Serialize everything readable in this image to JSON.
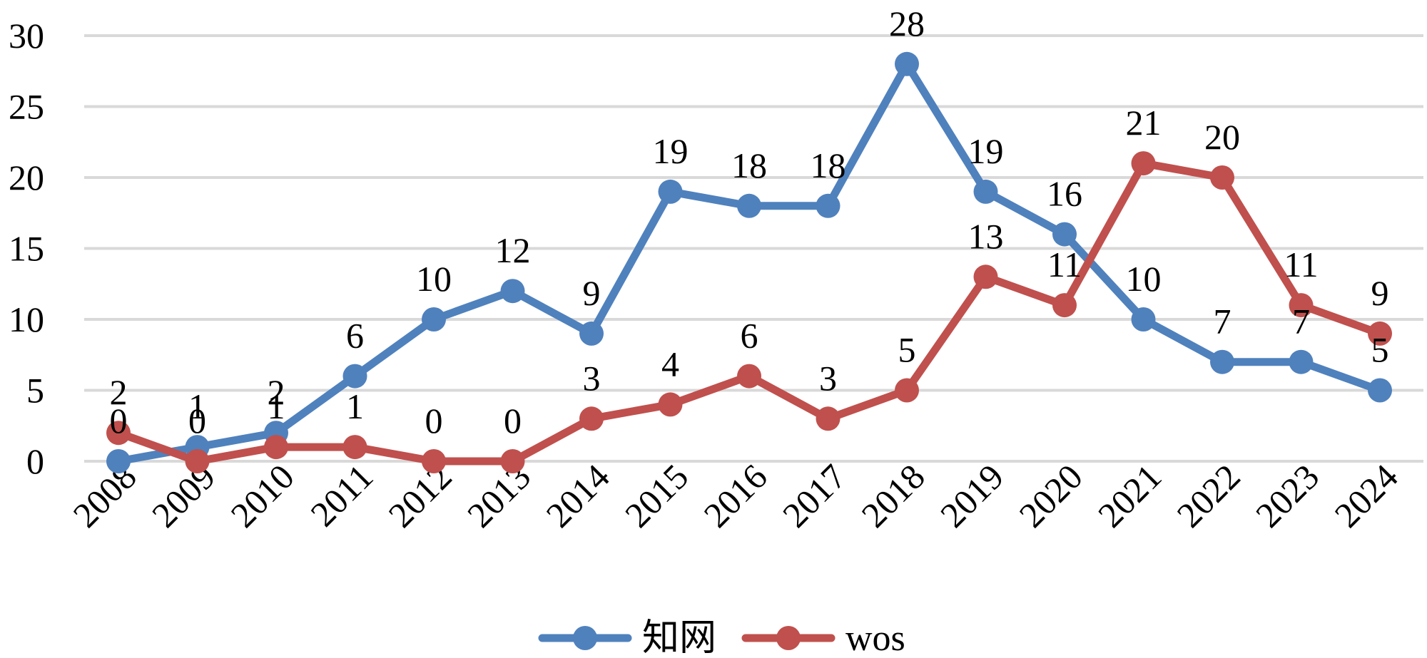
{
  "chart_data": {
    "type": "line",
    "title": "",
    "xlabel": "",
    "ylabel": "",
    "ylim": [
      0,
      30
    ],
    "yticks": [
      0,
      5,
      10,
      15,
      20,
      25,
      30
    ],
    "grid": true,
    "legend_position": "bottom-center",
    "categories": [
      "2008",
      "2009",
      "2010",
      "2011",
      "2012",
      "2013",
      "2014",
      "2015",
      "2016",
      "2017",
      "2018",
      "2019",
      "2020",
      "2021",
      "2022",
      "2023",
      "2024"
    ],
    "series": [
      {
        "name": "知网",
        "color": "#4f81bd",
        "values": [
          0,
          1,
          2,
          6,
          10,
          12,
          9,
          19,
          18,
          18,
          28,
          19,
          16,
          10,
          7,
          7,
          5
        ]
      },
      {
        "name": "wos",
        "color": "#c0504d",
        "values": [
          2,
          0,
          1,
          1,
          0,
          0,
          3,
          4,
          6,
          3,
          5,
          13,
          11,
          21,
          20,
          11,
          9
        ]
      }
    ]
  }
}
